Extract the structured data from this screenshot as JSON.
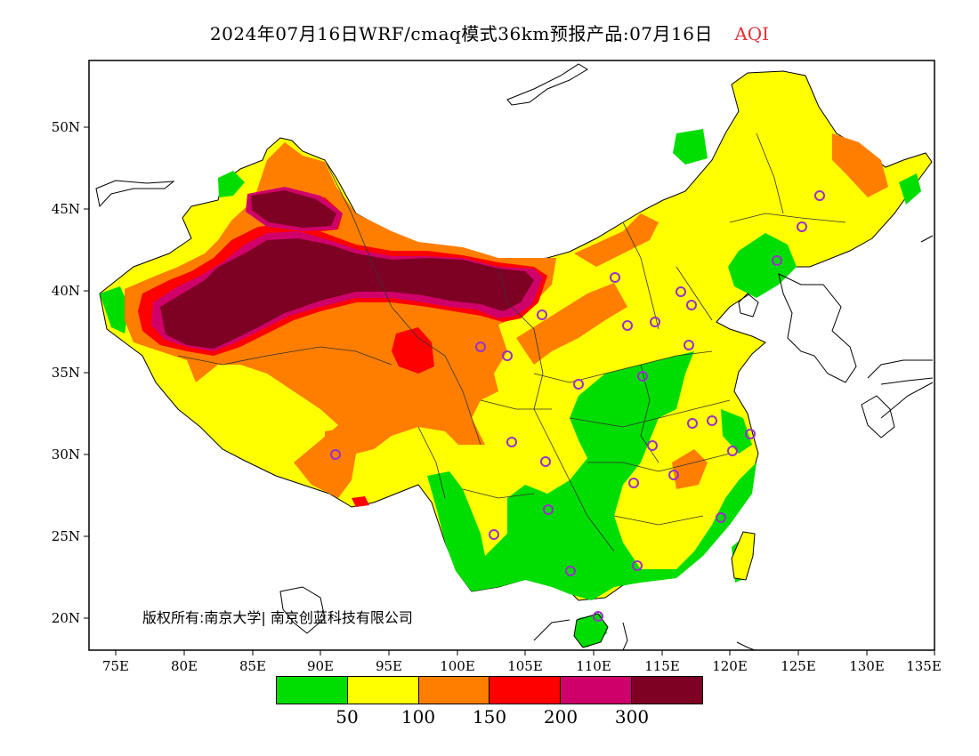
{
  "title": {
    "main": "2024年07月16日WRF/cmaq模式36km预报产品:07月16日",
    "variable": "AQI",
    "variable_color": "#e0343a"
  },
  "axes": {
    "lat_labels": [
      "50N",
      "45N",
      "40N",
      "35N",
      "30N",
      "25N",
      "20N"
    ],
    "lon_labels": [
      "75E",
      "80E",
      "85E",
      "90E",
      "95E",
      "100E",
      "105E",
      "110E",
      "115E",
      "120E",
      "125E",
      "130E",
      "135E"
    ]
  },
  "copyright": "版权所有:南京大学| 南京创蓝科技有限公司",
  "legend": {
    "colors": [
      "#00dd00",
      "#ffff00",
      "#ff7e00",
      "#ff0000",
      "#d0006a",
      "#7e0023"
    ],
    "labels": [
      "50",
      "100",
      "150",
      "200",
      "300"
    ]
  },
  "station_marker_color": "#9a30c8",
  "station_count": 36
}
